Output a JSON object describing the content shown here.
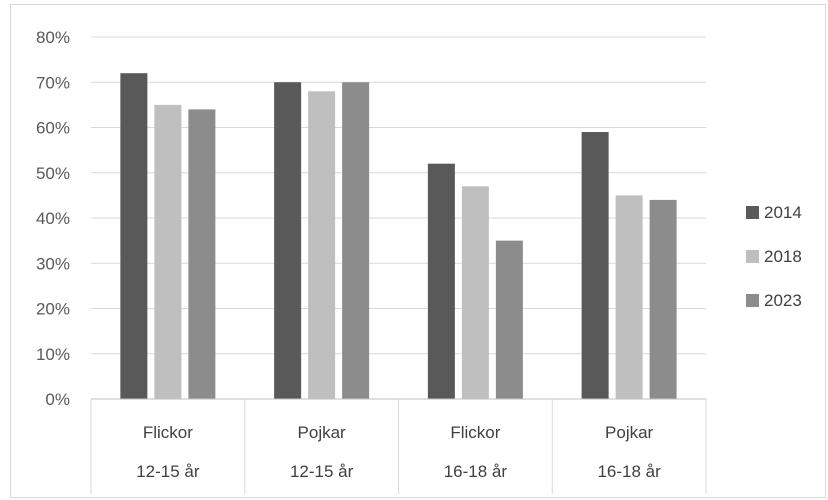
{
  "chart_data": {
    "type": "bar",
    "title": "",
    "xlabel": "",
    "ylabel": "",
    "ylim": [
      0,
      80
    ],
    "y_ticks": [
      0,
      10,
      20,
      30,
      40,
      50,
      60,
      70,
      80
    ],
    "y_tick_labels": [
      "0%",
      "10%",
      "20%",
      "30%",
      "40%",
      "50%",
      "60%",
      "70%",
      "80%"
    ],
    "grid": true,
    "legend_position": "right",
    "categories": [
      {
        "line1": "Flickor",
        "line2": "12-15 år"
      },
      {
        "line1": "Pojkar",
        "line2": "12-15 år"
      },
      {
        "line1": "Flickor",
        "line2": "16-18 år"
      },
      {
        "line1": "Pojkar",
        "line2": "16-18 år"
      }
    ],
    "series": [
      {
        "name": "2014",
        "color": "#595959",
        "values": [
          72,
          70,
          52,
          59
        ]
      },
      {
        "name": "2018",
        "color": "#bfbfbf",
        "values": [
          65,
          68,
          47,
          45
        ]
      },
      {
        "name": "2023",
        "color": "#8c8c8c",
        "values": [
          64,
          70,
          35,
          44
        ]
      }
    ]
  }
}
